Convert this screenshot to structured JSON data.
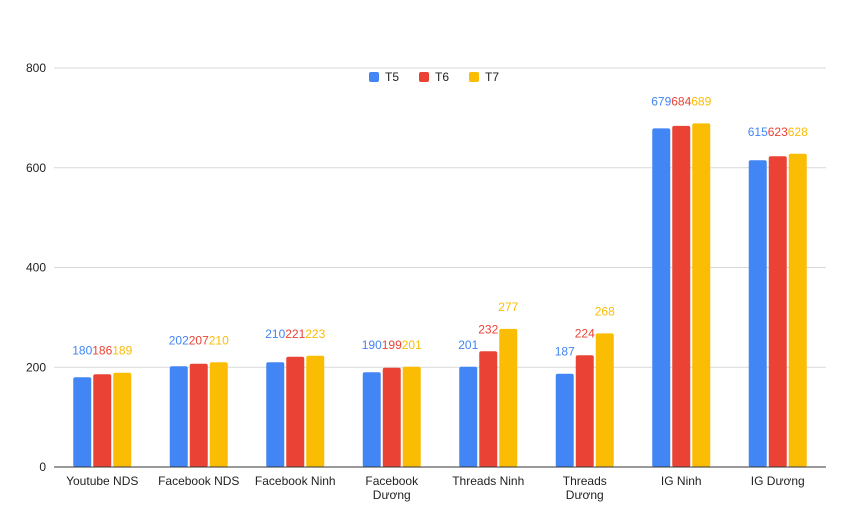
{
  "chart_data": {
    "type": "bar",
    "title": "",
    "xlabel": "",
    "ylabel": "",
    "ylim": [
      0,
      800
    ],
    "yticks": [
      0,
      200,
      400,
      600,
      800
    ],
    "grid": true,
    "legend_position": "top-center",
    "categories": [
      [
        "Youtube NDS"
      ],
      [
        "Facebook NDS"
      ],
      [
        "Facebook Ninh"
      ],
      [
        "Facebook",
        "Dương"
      ],
      [
        "Threads Ninh"
      ],
      [
        "Threads",
        "Dương"
      ],
      [
        "IG Ninh"
      ],
      [
        "IG Dương"
      ]
    ],
    "series": [
      {
        "name": "T5",
        "color": "#4285f4",
        "values": [
          180,
          202,
          210,
          190,
          201,
          187,
          679,
          615
        ]
      },
      {
        "name": "T6",
        "color": "#ea4335",
        "values": [
          186,
          207,
          221,
          199,
          232,
          224,
          684,
          623
        ]
      },
      {
        "name": "T7",
        "color": "#fbbc04",
        "values": [
          189,
          210,
          223,
          201,
          277,
          268,
          689,
          628
        ]
      }
    ]
  }
}
